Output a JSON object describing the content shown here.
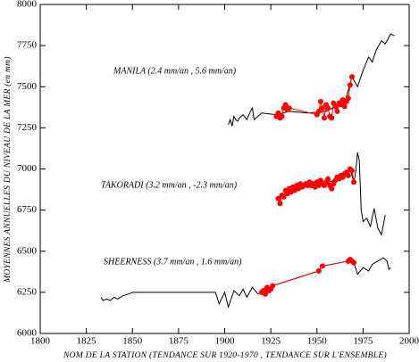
{
  "chart_data": {
    "type": "line",
    "x_label": "NOM DE LA STATION (TENDANCE SUR 1920-1970 , TENDANCE SUR L'ENSEMBLE)",
    "y_label": "MOYENNES ANNUELLES DU NIVEAU DE LA MER (en mm)",
    "xlim": [
      1800,
      2000
    ],
    "xticks": [
      1800,
      1825,
      1850,
      1875,
      1900,
      1925,
      1950,
      1975,
      2000
    ],
    "ylim": [
      6000,
      8000
    ],
    "yticks": [
      6000,
      6250,
      6500,
      6750,
      7000,
      7250,
      7500,
      7750,
      8000
    ],
    "series": [
      {
        "name": "MANILA (2.4 mm/an , 5.6 mm/an)",
        "color": "#000000",
        "x": [
          1902,
          1903,
          1904,
          1905,
          1906,
          1907,
          1908,
          1910,
          1912,
          1914,
          1915,
          1916,
          1918,
          1920,
          1928,
          1935,
          1945,
          1955,
          1960,
          1965,
          1969,
          1972,
          1975,
          1978,
          1980,
          1982,
          1985,
          1987,
          1990,
          1992
        ],
        "values": [
          7270,
          7300,
          7260,
          7320,
          7300,
          7290,
          7310,
          7330,
          7300,
          7350,
          7370,
          7300,
          7320,
          7340,
          7330,
          7350,
          7340,
          7350,
          7380,
          7400,
          7560,
          7500,
          7600,
          7680,
          7650,
          7720,
          7780,
          7760,
          7820,
          7810
        ],
        "trend_color": "#ff0000",
        "trend_x": [
          1928,
          1929,
          1930,
          1931,
          1932,
          1933,
          1934,
          1935,
          1950,
          1951,
          1952,
          1953,
          1954,
          1955,
          1956,
          1957,
          1958,
          1959,
          1960,
          1961,
          1962,
          1963,
          1964,
          1965,
          1966,
          1967,
          1968,
          1969
        ],
        "trend_values": [
          7320,
          7340,
          7310,
          7320,
          7370,
          7390,
          7360,
          7370,
          7330,
          7350,
          7410,
          7370,
          7310,
          7390,
          7370,
          7320,
          7310,
          7400,
          7380,
          7350,
          7400,
          7390,
          7420,
          7380,
          7410,
          7430,
          7510,
          7560
        ]
      },
      {
        "name": "TAKORADI (3.2 mm/an , -2.3 mm/an)",
        "color": "#000000",
        "x": [
          1929,
          1945,
          1960,
          1968,
          1970,
          1971,
          1972,
          1973,
          1974,
          1975,
          1977,
          1979,
          1981,
          1983,
          1985,
          1987
        ],
        "values": [
          6820,
          6900,
          6930,
          7000,
          6920,
          6980,
          7100,
          7050,
          6750,
          6680,
          6700,
          6650,
          6760,
          6640,
          6600,
          6720
        ],
        "trend_color": "#ff0000",
        "trend_x": [
          1929,
          1930,
          1931,
          1932,
          1933,
          1934,
          1935,
          1936,
          1937,
          1938,
          1939,
          1940,
          1941,
          1942,
          1943,
          1944,
          1945,
          1946,
          1947,
          1948,
          1949,
          1950,
          1951,
          1952,
          1953,
          1954,
          1955,
          1956,
          1957,
          1958,
          1959,
          1960,
          1961,
          1962,
          1963,
          1964,
          1965,
          1966,
          1967,
          1968,
          1969,
          1970
        ],
        "trend_values": [
          6820,
          6790,
          6840,
          6830,
          6870,
          6850,
          6880,
          6860,
          6890,
          6870,
          6900,
          6880,
          6910,
          6890,
          6900,
          6910,
          6900,
          6920,
          6900,
          6910,
          6890,
          6920,
          6900,
          6930,
          6910,
          6900,
          6920,
          6940,
          6900,
          6880,
          6910,
          6930,
          6950,
          6940,
          6960,
          6950,
          6970,
          6980,
          6960,
          7000,
          6990,
          6920
        ]
      },
      {
        "name": "SHEERNESS (3.7 mm/an , 1.6 mm/an)",
        "color": "#000000",
        "x": [
          1833,
          1834,
          1836,
          1838,
          1840,
          1842,
          1845,
          1848,
          1850,
          1860,
          1870,
          1880,
          1890,
          1895,
          1897,
          1900,
          1902,
          1905,
          1908,
          1910,
          1912,
          1915,
          1918,
          1920,
          1926,
          1951,
          1953,
          1967,
          1970,
          1972,
          1975,
          1978,
          1980,
          1983,
          1986,
          1988,
          1989,
          1990
        ],
        "values": [
          6220,
          6200,
          6210,
          6200,
          6220,
          6210,
          6230,
          6240,
          6250,
          6250,
          6250,
          6250,
          6250,
          6250,
          6180,
          6250,
          6160,
          6260,
          6230,
          6270,
          6220,
          6280,
          6240,
          6250,
          6290,
          6380,
          6410,
          6440,
          6430,
          6360,
          6400,
          6380,
          6420,
          6440,
          6460,
          6440,
          6390,
          6400
        ],
        "trend_color": "#ff0000",
        "trend_x": [
          1920,
          1921,
          1922,
          1923,
          1924,
          1925,
          1926,
          1951,
          1953,
          1967,
          1968,
          1969,
          1970
        ],
        "trend_values": [
          6250,
          6260,
          6240,
          6280,
          6260,
          6270,
          6290,
          6380,
          6410,
          6440,
          6450,
          6440,
          6430
        ]
      }
    ]
  }
}
